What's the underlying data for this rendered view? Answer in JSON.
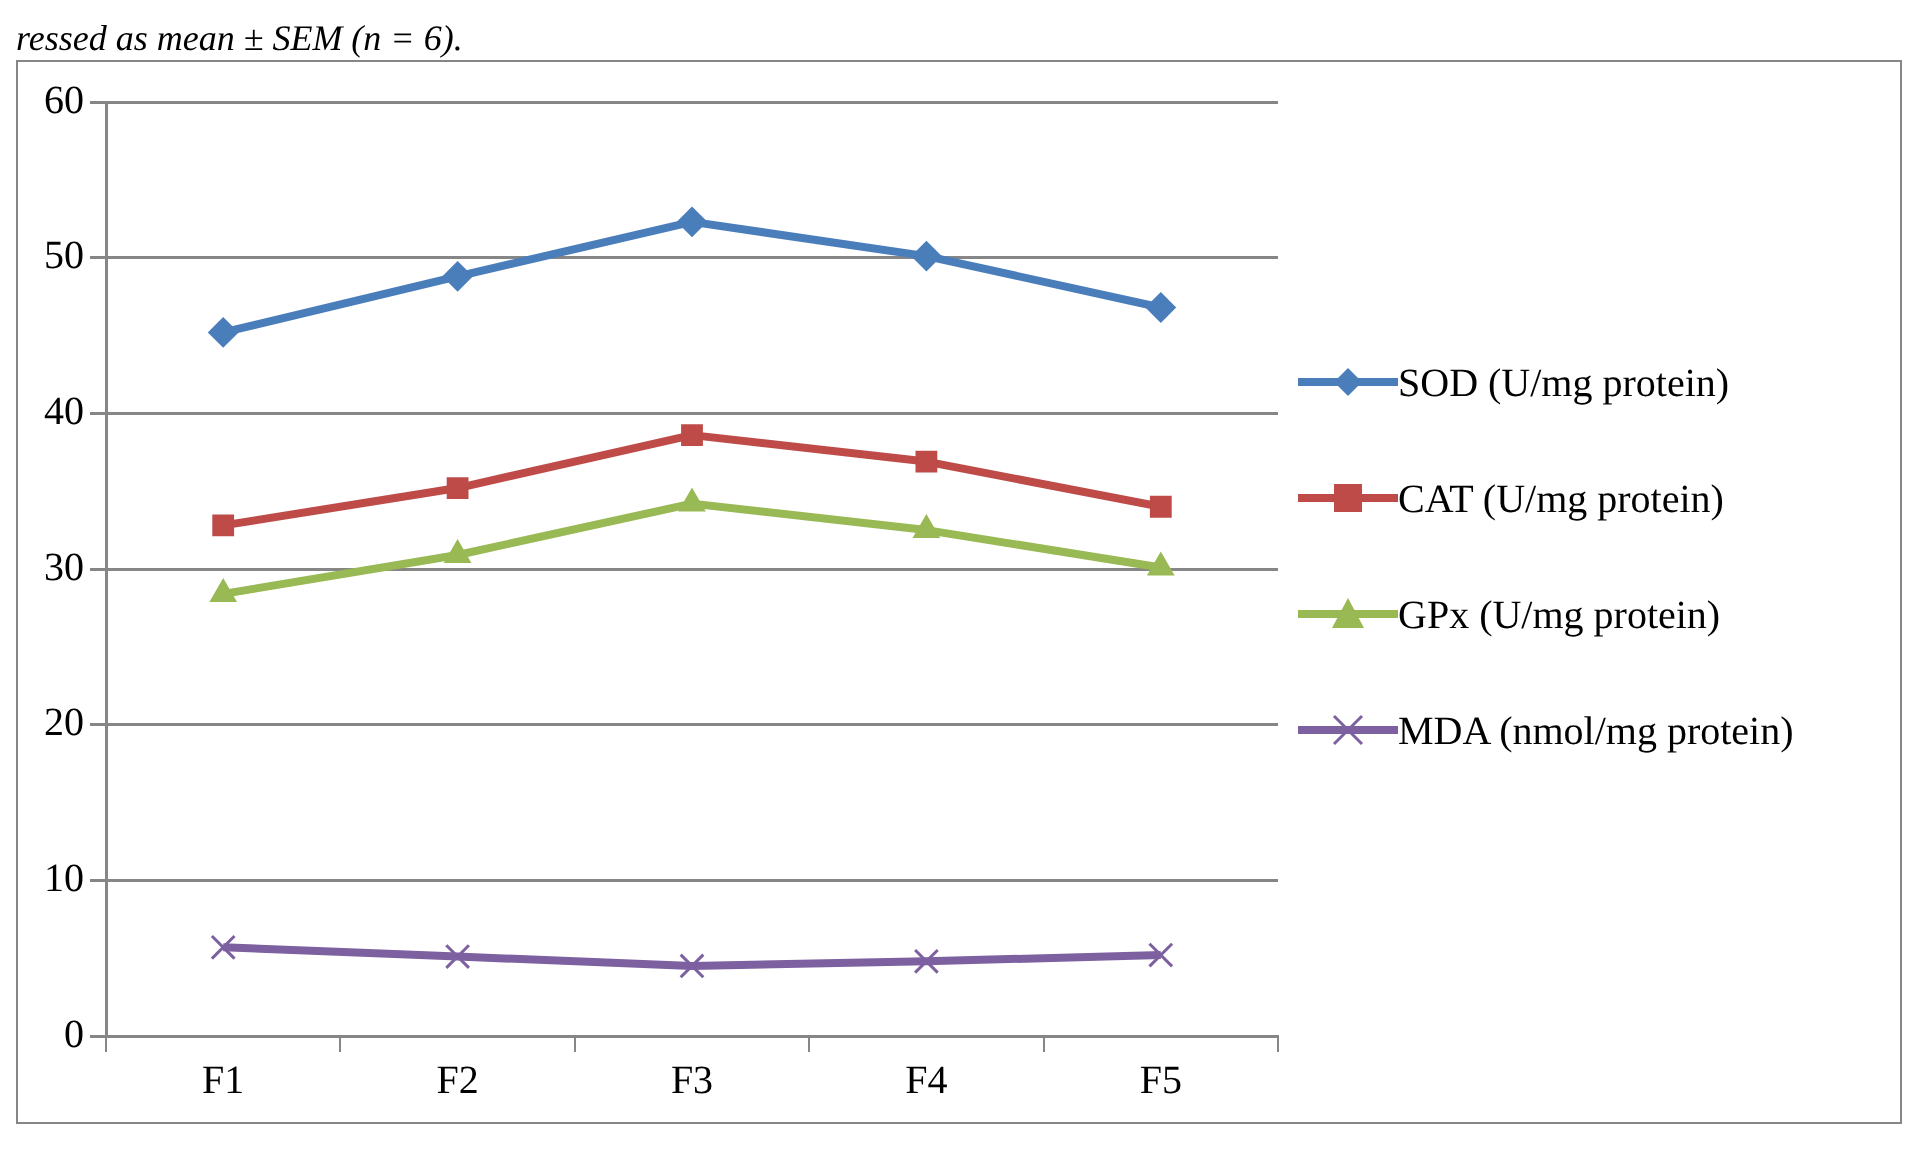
{
  "chart_data": {
    "type": "line",
    "annotations": [
      "ressed as mean ± SEM (n = 6)."
    ],
    "categories": [
      "F1",
      "F2",
      "F3",
      "F4",
      "F5"
    ],
    "series": [
      {
        "name": "SOD (U/mg protein)",
        "color": "#4a7ebb",
        "marker": "diamond",
        "values": [
          45.2,
          48.8,
          52.3,
          50.1,
          46.8
        ]
      },
      {
        "name": "CAT (U/mg protein)",
        "color": "#be4b48",
        "marker": "square",
        "values": [
          32.8,
          35.2,
          38.6,
          36.9,
          34.0
        ]
      },
      {
        "name": "GPx (U/mg protein)",
        "color": "#98b954",
        "marker": "triangle",
        "values": [
          28.4,
          30.9,
          34.2,
          32.5,
          30.1
        ]
      },
      {
        "name": "MDA (nmol/mg protein)",
        "color": "#7d60a0",
        "marker": "cross",
        "values": [
          5.7,
          5.1,
          4.5,
          4.8,
          5.2
        ]
      }
    ],
    "ylim": [
      0,
      60
    ],
    "yticks": [
      0,
      10,
      20,
      30,
      40,
      50,
      60
    ],
    "grid": "y",
    "legend": "right",
    "line_style": "solid"
  }
}
